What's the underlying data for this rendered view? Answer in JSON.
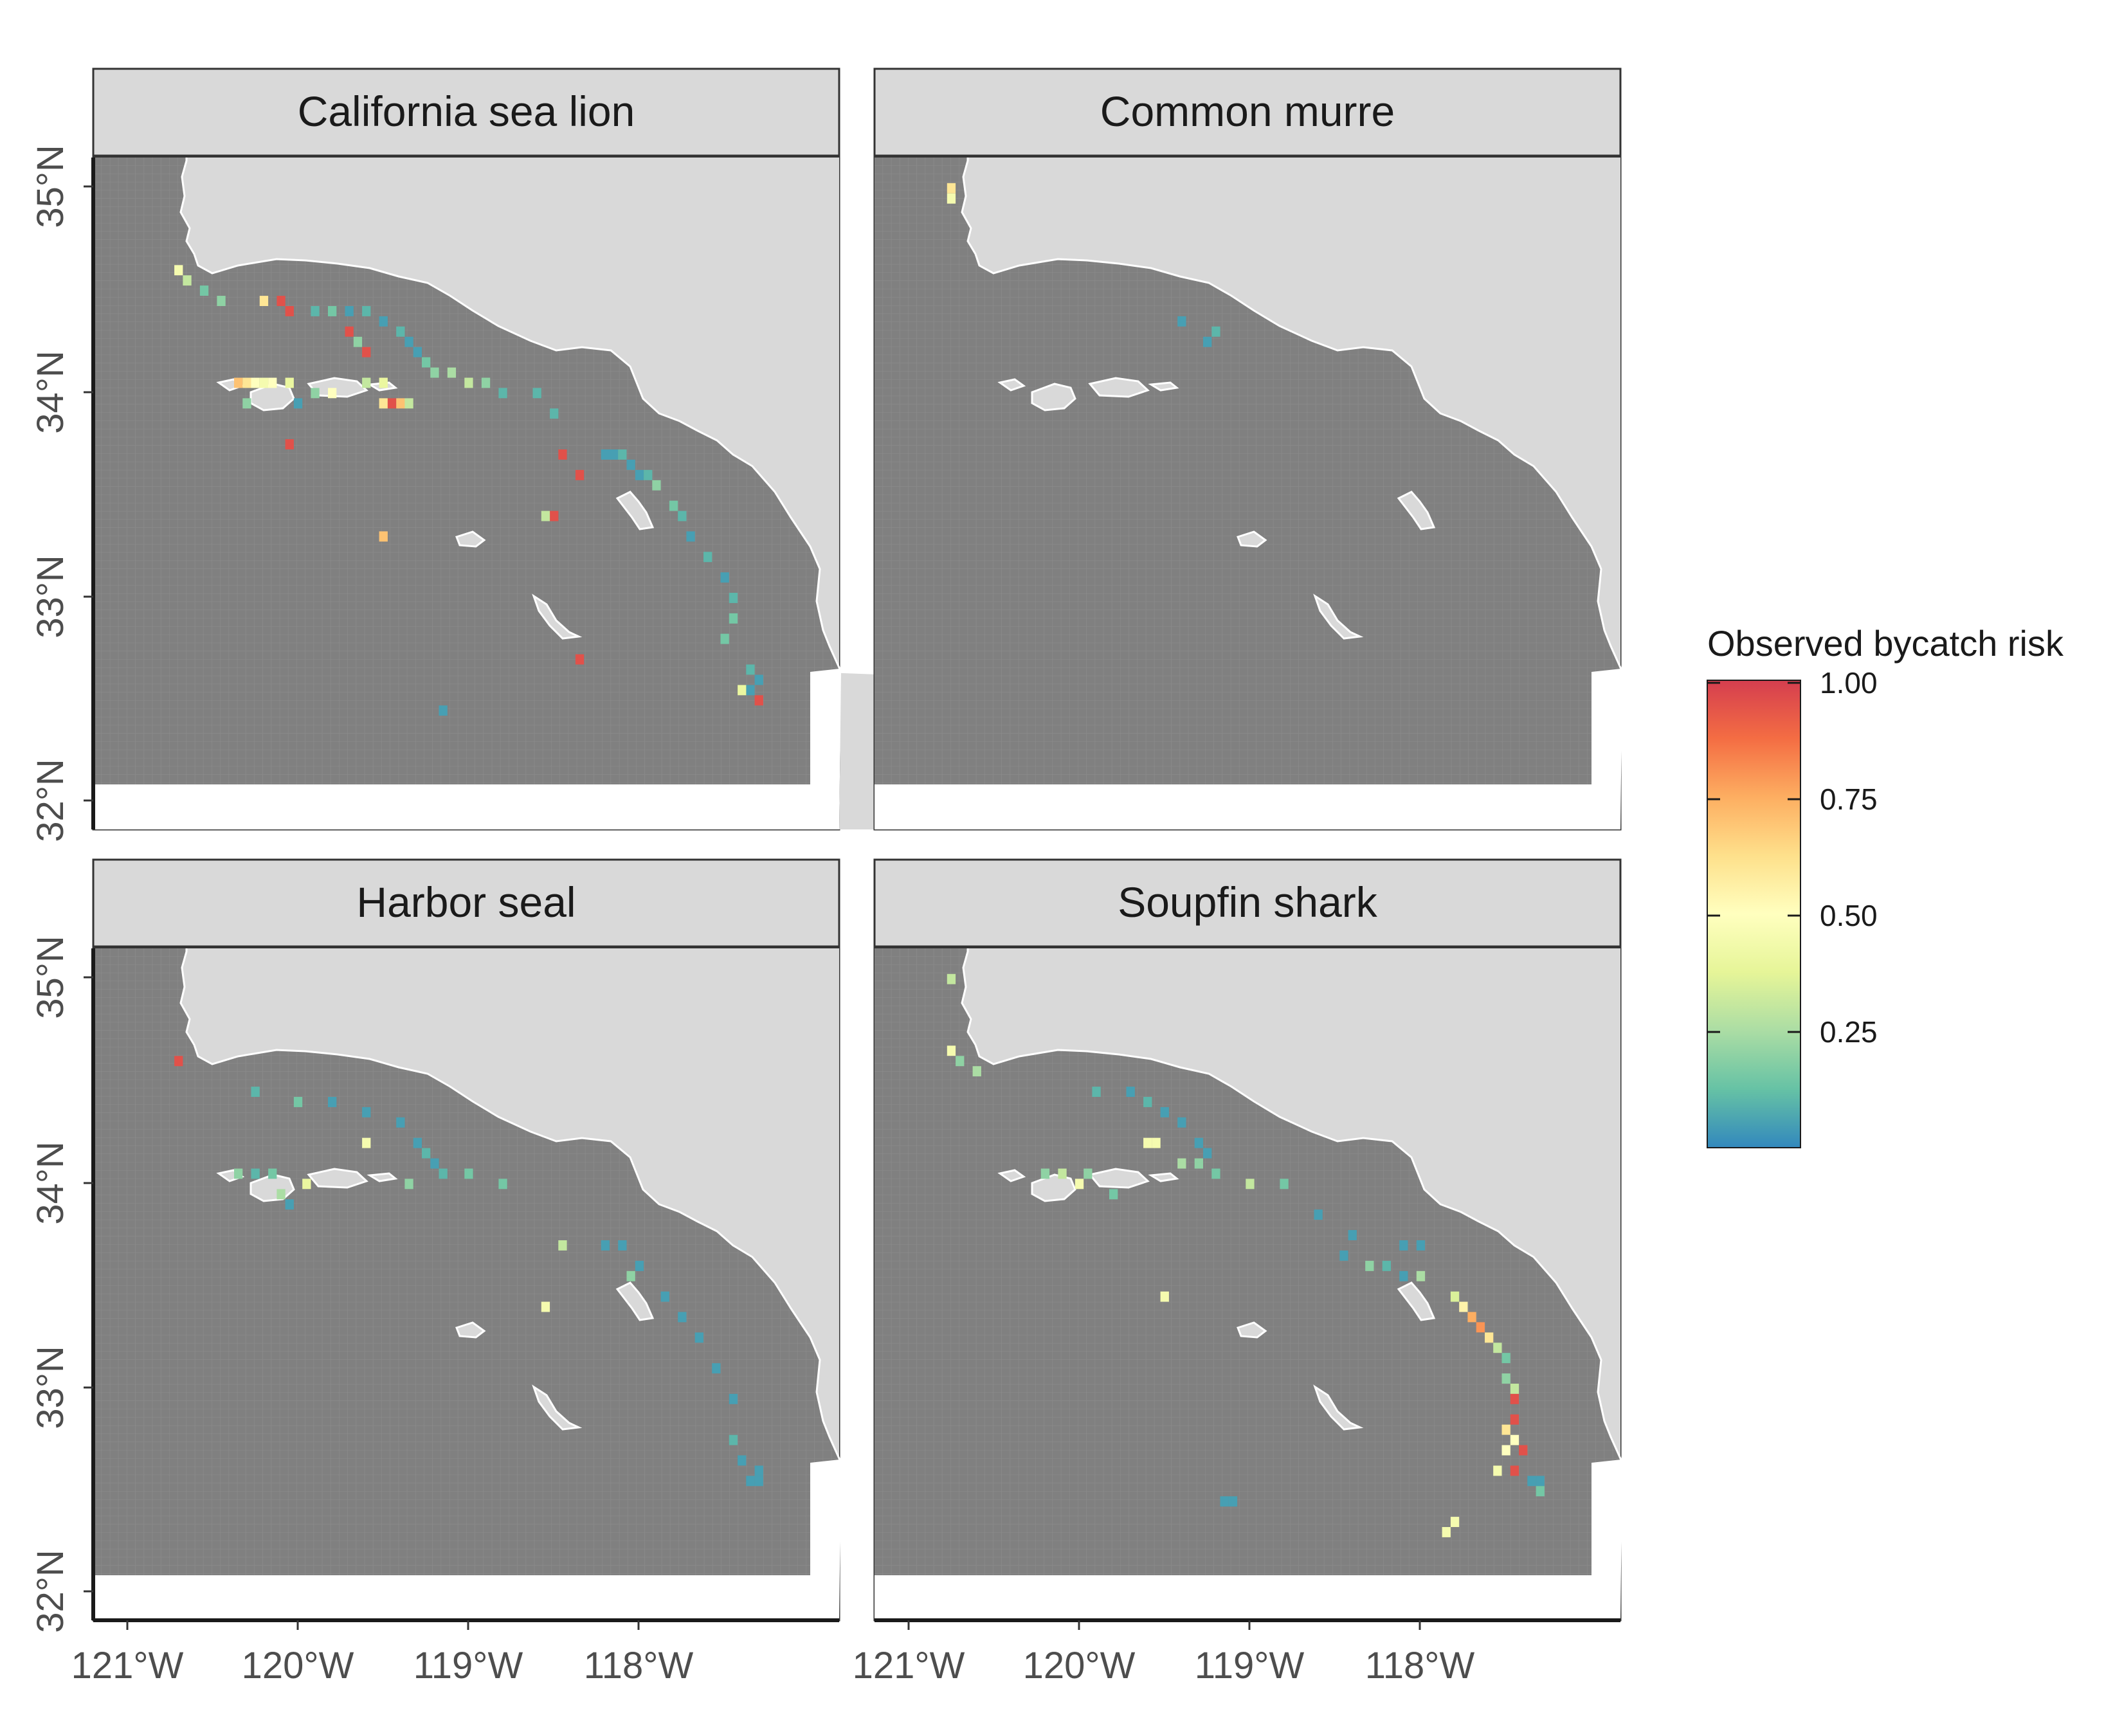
{
  "panels": [
    {
      "title": "California sea lion"
    },
    {
      "title": "Common murre"
    },
    {
      "title": "Harbor seal"
    },
    {
      "title": "Soupfin shark"
    }
  ],
  "axes": {
    "x_ticks": [
      "121°W",
      "120°W",
      "119°W",
      "118°W"
    ],
    "x_tick_values": [
      -121,
      -120,
      -119,
      -118
    ],
    "y_ticks": [
      "32°N",
      "33°N",
      "34°N",
      "35°N"
    ],
    "y_tick_values": [
      32,
      33,
      34,
      35
    ],
    "lon_range": [
      -121.2,
      -116.83
    ],
    "lat_range": [
      31.87,
      35.15
    ],
    "grid_extent": {
      "lon": [
        -121.2,
        -117.3
      ],
      "lat": [
        32.08,
        35.15
      ],
      "cell_deg": 0.05
    }
  },
  "legend": {
    "title": "Observed bycatch risk",
    "tick_labels": [
      "1.00",
      "0.75",
      "0.50",
      "0.25"
    ],
    "tick_values": [
      1.0,
      0.75,
      0.5,
      0.25
    ],
    "range": [
      0,
      1
    ],
    "colors": [
      "#3288bd",
      "#66c2a5",
      "#abdda4",
      "#e6f598",
      "#ffffbf",
      "#fee08b",
      "#fdae61",
      "#f46d43",
      "#d53e4f"
    ]
  },
  "colors": {
    "ocean_grid": "#808080",
    "grid_line": "#8e8e8e",
    "land": "#d9d9d9",
    "coastline": "#ffffff",
    "strip_fill": "#d9d9d9",
    "panel_border": "#333333"
  },
  "chart_data": {
    "type": "heatmap",
    "value_label": "Observed bycatch risk",
    "facets": [
      {
        "name": "California sea lion",
        "cells": [
          {
            "lon": -120.7,
            "lat": 34.6,
            "v": 0.45
          },
          {
            "lon": -120.65,
            "lat": 34.55,
            "v": 0.3
          },
          {
            "lon": -120.55,
            "lat": 34.5,
            "v": 0.15
          },
          {
            "lon": -120.45,
            "lat": 34.45,
            "v": 0.2
          },
          {
            "lon": -120.2,
            "lat": 34.45,
            "v": 0.6
          },
          {
            "lon": -120.1,
            "lat": 34.45,
            "v": 0.95
          },
          {
            "lon": -120.05,
            "lat": 34.4,
            "v": 0.95
          },
          {
            "lon": -119.9,
            "lat": 34.4,
            "v": 0.1
          },
          {
            "lon": -119.8,
            "lat": 34.4,
            "v": 0.15
          },
          {
            "lon": -119.7,
            "lat": 34.4,
            "v": 0.05
          },
          {
            "lon": -119.6,
            "lat": 34.4,
            "v": 0.1
          },
          {
            "lon": -119.5,
            "lat": 34.35,
            "v": 0.05
          },
          {
            "lon": -119.4,
            "lat": 34.3,
            "v": 0.1
          },
          {
            "lon": -119.35,
            "lat": 34.25,
            "v": 0.05
          },
          {
            "lon": -119.3,
            "lat": 34.2,
            "v": 0.05
          },
          {
            "lon": -119.25,
            "lat": 34.15,
            "v": 0.15
          },
          {
            "lon": -119.2,
            "lat": 34.1,
            "v": 0.2
          },
          {
            "lon": -119.1,
            "lat": 34.1,
            "v": 0.25
          },
          {
            "lon": -119.0,
            "lat": 34.05,
            "v": 0.3
          },
          {
            "lon": -118.9,
            "lat": 34.05,
            "v": 0.2
          },
          {
            "lon": -118.8,
            "lat": 34.0,
            "v": 0.1
          },
          {
            "lon": -119.7,
            "lat": 34.3,
            "v": 0.95
          },
          {
            "lon": -119.6,
            "lat": 34.2,
            "v": 0.95
          },
          {
            "lon": -119.65,
            "lat": 34.25,
            "v": 0.2
          },
          {
            "lon": -120.35,
            "lat": 34.05,
            "v": 0.7
          },
          {
            "lon": -120.3,
            "lat": 34.05,
            "v": 0.6
          },
          {
            "lon": -120.25,
            "lat": 34.05,
            "v": 0.5
          },
          {
            "lon": -120.2,
            "lat": 34.05,
            "v": 0.45
          },
          {
            "lon": -120.15,
            "lat": 34.05,
            "v": 0.5
          },
          {
            "lon": -120.05,
            "lat": 34.05,
            "v": 0.4
          },
          {
            "lon": -119.9,
            "lat": 34.0,
            "v": 0.2
          },
          {
            "lon": -119.8,
            "lat": 34.0,
            "v": 0.5
          },
          {
            "lon": -120.3,
            "lat": 33.95,
            "v": 0.2
          },
          {
            "lon": -120.0,
            "lat": 33.95,
            "v": 0.05
          },
          {
            "lon": -119.5,
            "lat": 33.95,
            "v": 0.6
          },
          {
            "lon": -119.45,
            "lat": 33.95,
            "v": 0.95
          },
          {
            "lon": -119.4,
            "lat": 33.95,
            "v": 0.7
          },
          {
            "lon": -119.35,
            "lat": 33.95,
            "v": 0.3
          },
          {
            "lon": -119.5,
            "lat": 34.05,
            "v": 0.4
          },
          {
            "lon": -119.6,
            "lat": 34.05,
            "v": 0.3
          },
          {
            "lon": -120.05,
            "lat": 33.75,
            "v": 0.95
          },
          {
            "lon": -118.6,
            "lat": 34.0,
            "v": 0.1
          },
          {
            "lon": -118.5,
            "lat": 33.9,
            "v": 0.1
          },
          {
            "lon": -118.45,
            "lat": 33.7,
            "v": 0.95
          },
          {
            "lon": -118.35,
            "lat": 33.6,
            "v": 0.95
          },
          {
            "lon": -118.2,
            "lat": 33.7,
            "v": 0.05
          },
          {
            "lon": -118.15,
            "lat": 33.7,
            "v": 0.05
          },
          {
            "lon": -118.1,
            "lat": 33.7,
            "v": 0.1
          },
          {
            "lon": -118.05,
            "lat": 33.65,
            "v": 0.05
          },
          {
            "lon": -118.0,
            "lat": 33.6,
            "v": 0.05
          },
          {
            "lon": -117.95,
            "lat": 33.6,
            "v": 0.1
          },
          {
            "lon": -117.9,
            "lat": 33.55,
            "v": 0.2
          },
          {
            "lon": -117.8,
            "lat": 33.45,
            "v": 0.15
          },
          {
            "lon": -117.75,
            "lat": 33.4,
            "v": 0.1
          },
          {
            "lon": -117.7,
            "lat": 33.3,
            "v": 0.05
          },
          {
            "lon": -117.6,
            "lat": 33.2,
            "v": 0.1
          },
          {
            "lon": -117.5,
            "lat": 33.1,
            "v": 0.05
          },
          {
            "lon": -117.45,
            "lat": 33.0,
            "v": 0.1
          },
          {
            "lon": -117.45,
            "lat": 32.9,
            "v": 0.15
          },
          {
            "lon": -117.5,
            "lat": 32.8,
            "v": 0.15
          },
          {
            "lon": -117.35,
            "lat": 32.65,
            "v": 0.1
          },
          {
            "lon": -117.3,
            "lat": 32.6,
            "v": 0.05
          },
          {
            "lon": -117.35,
            "lat": 32.55,
            "v": 0.05
          },
          {
            "lon": -117.4,
            "lat": 32.55,
            "v": 0.4
          },
          {
            "lon": -117.3,
            "lat": 32.5,
            "v": 0.95
          },
          {
            "lon": -118.5,
            "lat": 33.4,
            "v": 0.95
          },
          {
            "lon": -118.55,
            "lat": 33.4,
            "v": 0.3
          },
          {
            "lon": -119.5,
            "lat": 33.3,
            "v": 0.7
          },
          {
            "lon": -118.35,
            "lat": 32.7,
            "v": 0.95
          },
          {
            "lon": -119.15,
            "lat": 32.45,
            "v": 0.05
          }
        ]
      },
      {
        "name": "Common murre",
        "cells": [
          {
            "lon": -120.75,
            "lat": 35.0,
            "v": 0.6
          },
          {
            "lon": -120.75,
            "lat": 34.95,
            "v": 0.45
          },
          {
            "lon": -119.4,
            "lat": 34.35,
            "v": 0.05
          },
          {
            "lon": -119.25,
            "lat": 34.25,
            "v": 0.05
          },
          {
            "lon": -119.2,
            "lat": 34.3,
            "v": 0.1
          }
        ]
      },
      {
        "name": "Harbor seal",
        "cells": [
          {
            "lon": -120.7,
            "lat": 34.6,
            "v": 0.95
          },
          {
            "lon": -120.25,
            "lat": 34.45,
            "v": 0.1
          },
          {
            "lon": -120.0,
            "lat": 34.4,
            "v": 0.15
          },
          {
            "lon": -119.8,
            "lat": 34.4,
            "v": 0.05
          },
          {
            "lon": -119.6,
            "lat": 34.35,
            "v": 0.05
          },
          {
            "lon": -119.4,
            "lat": 34.3,
            "v": 0.05
          },
          {
            "lon": -119.3,
            "lat": 34.2,
            "v": 0.05
          },
          {
            "lon": -119.25,
            "lat": 34.15,
            "v": 0.1
          },
          {
            "lon": -119.2,
            "lat": 34.1,
            "v": 0.05
          },
          {
            "lon": -119.6,
            "lat": 34.2,
            "v": 0.45
          },
          {
            "lon": -119.35,
            "lat": 34.0,
            "v": 0.2
          },
          {
            "lon": -119.15,
            "lat": 34.05,
            "v": 0.1
          },
          {
            "lon": -119.0,
            "lat": 34.05,
            "v": 0.15
          },
          {
            "lon": -118.8,
            "lat": 34.0,
            "v": 0.15
          },
          {
            "lon": -120.35,
            "lat": 34.05,
            "v": 0.2
          },
          {
            "lon": -120.25,
            "lat": 34.05,
            "v": 0.1
          },
          {
            "lon": -120.15,
            "lat": 34.05,
            "v": 0.15
          },
          {
            "lon": -120.1,
            "lat": 33.95,
            "v": 0.25
          },
          {
            "lon": -119.95,
            "lat": 34.0,
            "v": 0.4
          },
          {
            "lon": -120.05,
            "lat": 33.9,
            "v": 0.05
          },
          {
            "lon": -118.45,
            "lat": 33.7,
            "v": 0.3
          },
          {
            "lon": -118.2,
            "lat": 33.7,
            "v": 0.05
          },
          {
            "lon": -118.1,
            "lat": 33.7,
            "v": 0.05
          },
          {
            "lon": -118.0,
            "lat": 33.6,
            "v": 0.05
          },
          {
            "lon": -118.05,
            "lat": 33.55,
            "v": 0.2
          },
          {
            "lon": -117.85,
            "lat": 33.45,
            "v": 0.05
          },
          {
            "lon": -117.75,
            "lat": 33.35,
            "v": 0.05
          },
          {
            "lon": -117.65,
            "lat": 33.25,
            "v": 0.05
          },
          {
            "lon": -117.55,
            "lat": 33.1,
            "v": 0.05
          },
          {
            "lon": -117.45,
            "lat": 32.95,
            "v": 0.05
          },
          {
            "lon": -117.45,
            "lat": 32.75,
            "v": 0.1
          },
          {
            "lon": -117.4,
            "lat": 32.65,
            "v": 0.05
          },
          {
            "lon": -117.35,
            "lat": 32.55,
            "v": 0.05
          },
          {
            "lon": -117.3,
            "lat": 32.55,
            "v": 0.05
          },
          {
            "lon": -117.3,
            "lat": 32.6,
            "v": 0.05
          },
          {
            "lon": -118.55,
            "lat": 33.4,
            "v": 0.45
          }
        ]
      },
      {
        "name": "Soupfin shark",
        "cells": [
          {
            "lon": -120.75,
            "lat": 35.0,
            "v": 0.3
          },
          {
            "lon": -120.75,
            "lat": 34.65,
            "v": 0.45
          },
          {
            "lon": -120.7,
            "lat": 34.6,
            "v": 0.2
          },
          {
            "lon": -120.6,
            "lat": 34.55,
            "v": 0.25
          },
          {
            "lon": -119.9,
            "lat": 34.45,
            "v": 0.1
          },
          {
            "lon": -119.7,
            "lat": 34.45,
            "v": 0.05
          },
          {
            "lon": -119.6,
            "lat": 34.4,
            "v": 0.1
          },
          {
            "lon": -119.5,
            "lat": 34.35,
            "v": 0.05
          },
          {
            "lon": -119.4,
            "lat": 34.3,
            "v": 0.05
          },
          {
            "lon": -119.3,
            "lat": 34.2,
            "v": 0.05
          },
          {
            "lon": -119.25,
            "lat": 34.15,
            "v": 0.05
          },
          {
            "lon": -119.6,
            "lat": 34.2,
            "v": 0.45
          },
          {
            "lon": -119.55,
            "lat": 34.2,
            "v": 0.45
          },
          {
            "lon": -119.4,
            "lat": 34.1,
            "v": 0.25
          },
          {
            "lon": -119.3,
            "lat": 34.1,
            "v": 0.2
          },
          {
            "lon": -119.2,
            "lat": 34.05,
            "v": 0.15
          },
          {
            "lon": -119.0,
            "lat": 34.0,
            "v": 0.3
          },
          {
            "lon": -118.8,
            "lat": 34.0,
            "v": 0.15
          },
          {
            "lon": -120.2,
            "lat": 34.05,
            "v": 0.2
          },
          {
            "lon": -120.1,
            "lat": 34.05,
            "v": 0.3
          },
          {
            "lon": -120.0,
            "lat": 34.0,
            "v": 0.45
          },
          {
            "lon": -119.95,
            "lat": 34.05,
            "v": 0.2
          },
          {
            "lon": -119.8,
            "lat": 33.95,
            "v": 0.15
          },
          {
            "lon": -118.6,
            "lat": 33.85,
            "v": 0.05
          },
          {
            "lon": -118.45,
            "lat": 33.65,
            "v": 0.05
          },
          {
            "lon": -118.3,
            "lat": 33.6,
            "v": 0.2
          },
          {
            "lon": -118.2,
            "lat": 33.6,
            "v": 0.1
          },
          {
            "lon": -118.1,
            "lat": 33.55,
            "v": 0.05
          },
          {
            "lon": -118.0,
            "lat": 33.55,
            "v": 0.25
          },
          {
            "lon": -118.1,
            "lat": 33.7,
            "v": 0.05
          },
          {
            "lon": -118.0,
            "lat": 33.7,
            "v": 0.05
          },
          {
            "lon": -117.8,
            "lat": 33.45,
            "v": 0.35
          },
          {
            "lon": -117.75,
            "lat": 33.4,
            "v": 0.55
          },
          {
            "lon": -117.7,
            "lat": 33.35,
            "v": 0.75
          },
          {
            "lon": -117.65,
            "lat": 33.3,
            "v": 0.8
          },
          {
            "lon": -117.6,
            "lat": 33.25,
            "v": 0.6
          },
          {
            "lon": -117.55,
            "lat": 33.2,
            "v": 0.3
          },
          {
            "lon": -117.5,
            "lat": 33.15,
            "v": 0.15
          },
          {
            "lon": -117.5,
            "lat": 33.05,
            "v": 0.2
          },
          {
            "lon": -117.45,
            "lat": 33.0,
            "v": 0.3
          },
          {
            "lon": -117.45,
            "lat": 32.95,
            "v": 0.95
          },
          {
            "lon": -117.45,
            "lat": 32.85,
            "v": 0.95
          },
          {
            "lon": -117.5,
            "lat": 32.8,
            "v": 0.6
          },
          {
            "lon": -117.45,
            "lat": 32.75,
            "v": 0.5
          },
          {
            "lon": -117.5,
            "lat": 32.7,
            "v": 0.5
          },
          {
            "lon": -117.4,
            "lat": 32.7,
            "v": 0.95
          },
          {
            "lon": -117.55,
            "lat": 32.6,
            "v": 0.45
          },
          {
            "lon": -117.45,
            "lat": 32.6,
            "v": 0.95
          },
          {
            "lon": -117.35,
            "lat": 32.55,
            "v": 0.05
          },
          {
            "lon": -117.3,
            "lat": 32.55,
            "v": 0.05
          },
          {
            "lon": -117.3,
            "lat": 32.5,
            "v": 0.15
          },
          {
            "lon": -119.5,
            "lat": 33.45,
            "v": 0.45
          },
          {
            "lon": -118.4,
            "lat": 33.75,
            "v": 0.05
          },
          {
            "lon": -119.1,
            "lat": 32.45,
            "v": 0.05
          },
          {
            "lon": -119.15,
            "lat": 32.45,
            "v": 0.05
          },
          {
            "lon": -117.85,
            "lat": 32.3,
            "v": 0.45
          },
          {
            "lon": -117.8,
            "lat": 32.35,
            "v": 0.45
          }
        ]
      }
    ]
  }
}
